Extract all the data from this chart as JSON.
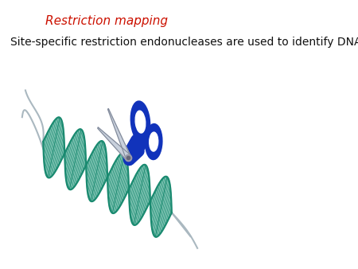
{
  "title": "Restriction mapping",
  "title_color": "#cc1100",
  "title_fontsize": 11,
  "subtitle": "Site-specific restriction endonucleases are used to identify DNA molecules",
  "subtitle_fontsize": 10,
  "subtitle_color": "#111111",
  "bg_color": "#ffffff",
  "dna_strand_color": "#1a8a70",
  "dna_fill_color": "#a8ddd0",
  "dna_line_color": "#1a8a70",
  "scissors_blue": "#1133bb",
  "scissors_silver": "#c0c8d8",
  "scissors_silver_dark": "#909098"
}
